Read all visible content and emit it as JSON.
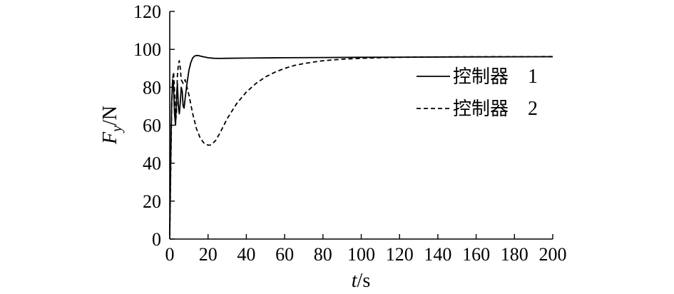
{
  "chart_data": {
    "type": "line",
    "xlabel_var": "t",
    "xlabel_unit": "/s",
    "ylabel_var": "F",
    "ylabel_sub": "y",
    "ylabel_unit": "/N",
    "xlim": [
      0,
      200
    ],
    "ylim": [
      0,
      120
    ],
    "x_ticks": [
      0,
      20,
      40,
      60,
      80,
      100,
      120,
      140,
      160,
      180,
      200
    ],
    "y_ticks": [
      0,
      20,
      40,
      60,
      80,
      100,
      120
    ],
    "grid": false,
    "legend_position": "right",
    "series": [
      {
        "name": "控制器",
        "number": "1",
        "style": "solid",
        "x": [
          0,
          0.5,
          1,
          1.5,
          2,
          2.5,
          3,
          3.5,
          4,
          4.5,
          5,
          5.5,
          6,
          6.5,
          7,
          7.5,
          8,
          9,
          10,
          11,
          12,
          13,
          14,
          15,
          17,
          20,
          23,
          26,
          30,
          40,
          60,
          80,
          100,
          120,
          150,
          200
        ],
        "y": [
          2,
          40,
          72,
          84,
          80,
          66,
          60,
          74,
          82,
          70,
          66,
          72,
          80,
          78,
          70,
          69,
          74,
          82,
          89,
          93,
          95.5,
          96.5,
          96.8,
          96.7,
          96.2,
          95.6,
          95.3,
          95.2,
          95.3,
          95.4,
          95.6,
          95.7,
          95.8,
          95.9,
          96,
          96.1
        ]
      },
      {
        "name": "控制器",
        "number": "2",
        "style": "dashed",
        "x": [
          0,
          0.5,
          1,
          1.5,
          2,
          2.5,
          3,
          3.5,
          4,
          4.5,
          5,
          5.5,
          6,
          7,
          8,
          9,
          10,
          12,
          14,
          16,
          18,
          20,
          21,
          22,
          24,
          26,
          28,
          30,
          35,
          40,
          45,
          50,
          55,
          60,
          65,
          70,
          75,
          80,
          90,
          100,
          110,
          120,
          140,
          160,
          200
        ],
        "y": [
          2,
          35,
          70,
          84,
          88,
          78,
          62,
          66,
          86,
          92,
          94,
          90,
          84,
          82,
          84,
          80,
          76,
          66,
          58,
          53,
          50.5,
          49.5,
          49.5,
          50,
          52,
          55.5,
          59.5,
          63.5,
          71.5,
          77.5,
          82,
          85.5,
          88,
          90,
          91.5,
          92.5,
          93.3,
          94,
          94.8,
          95.3,
          95.6,
          95.8,
          96,
          96.1,
          96.2
        ]
      }
    ]
  }
}
